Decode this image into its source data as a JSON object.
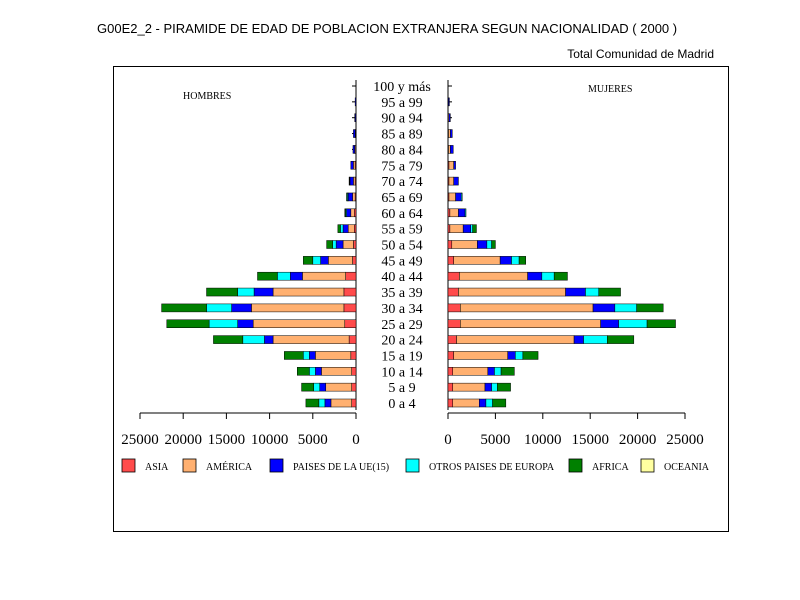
{
  "title": "G00E2_2 - PIRAMIDE DE EDAD DE POBLACION EXTRANJERA SEGUN NACIONALIDAD ( 2000 )",
  "subtitle": "Total Comunidad de Madrid",
  "chart_data": {
    "type": "bar",
    "orientation": "horizontal-stacked-pyramid",
    "left_label": "HOMBRES",
    "right_label": "MUJERES",
    "categories": [
      "0 a 4",
      "5 a 9",
      "10 a 14",
      "15 a 19",
      "20 a 24",
      "25 a 29",
      "30 a 34",
      "35 a 39",
      "40 a 44",
      "45 a 49",
      "50 a 54",
      "55 a 59",
      "60 a 64",
      "65 a 69",
      "70 a 74",
      "75 a 79",
      "80 a 84",
      "85 a 89",
      "90 a 94",
      "95 a 99",
      "100 y más"
    ],
    "axis_ticks": [
      0,
      5000,
      10000,
      15000,
      20000,
      25000
    ],
    "xlim": [
      0,
      25000
    ],
    "legend": [
      {
        "name": "ASIA",
        "color": "#ff4b4b"
      },
      {
        "name": "AMÉRICA",
        "color": "#ffb070"
      },
      {
        "name": "PAISES DE LA UE(15)",
        "color": "#0000ff"
      },
      {
        "name": "OTROS PAISES DE EUROPA",
        "color": "#00ffff"
      },
      {
        "name": "AFRICA",
        "color": "#008000"
      },
      {
        "name": "OCEANIA",
        "color": "#ffffa0"
      }
    ],
    "men": [
      [
        500,
        2400,
        700,
        700,
        1500,
        0
      ],
      [
        500,
        3000,
        700,
        700,
        1400,
        0
      ],
      [
        500,
        3500,
        700,
        700,
        1400,
        0
      ],
      [
        600,
        4100,
        700,
        700,
        2200,
        0
      ],
      [
        800,
        8800,
        1000,
        2500,
        3400,
        0
      ],
      [
        1300,
        10600,
        1800,
        3300,
        4900,
        0
      ],
      [
        1400,
        10700,
        2300,
        2900,
        5200,
        0
      ],
      [
        1400,
        8200,
        2200,
        1900,
        3600,
        0
      ],
      [
        1200,
        5000,
        1400,
        1500,
        2300,
        0
      ],
      [
        400,
        2800,
        900,
        900,
        1100,
        0
      ],
      [
        300,
        1200,
        800,
        400,
        700,
        0
      ],
      [
        200,
        700,
        600,
        300,
        300,
        0
      ],
      [
        200,
        400,
        500,
        100,
        100,
        0
      ],
      [
        100,
        300,
        500,
        100,
        100,
        0
      ],
      [
        100,
        200,
        400,
        50,
        50,
        0
      ],
      [
        100,
        200,
        300,
        0,
        0,
        0
      ],
      [
        50,
        100,
        200,
        0,
        0,
        0
      ],
      [
        50,
        50,
        200,
        0,
        0,
        0
      ],
      [
        0,
        50,
        100,
        0,
        0,
        0
      ],
      [
        0,
        0,
        100,
        0,
        0,
        0
      ],
      [
        0,
        0,
        0,
        0,
        0,
        0
      ]
    ],
    "women": [
      [
        500,
        2800,
        700,
        700,
        1400,
        0
      ],
      [
        500,
        3400,
        700,
        600,
        1400,
        0
      ],
      [
        500,
        3700,
        700,
        700,
        1400,
        0
      ],
      [
        600,
        5700,
        800,
        800,
        1600,
        0
      ],
      [
        900,
        12400,
        1000,
        2500,
        2800,
        0
      ],
      [
        1300,
        14800,
        1900,
        3000,
        3000,
        0
      ],
      [
        1300,
        14000,
        2300,
        2300,
        2800,
        0
      ],
      [
        1100,
        11300,
        2100,
        1400,
        2300,
        0
      ],
      [
        1200,
        7200,
        1500,
        1300,
        1400,
        0
      ],
      [
        600,
        4900,
        1200,
        800,
        700,
        0
      ],
      [
        400,
        2700,
        1000,
        500,
        400,
        0
      ],
      [
        200,
        1400,
        800,
        200,
        400,
        0
      ],
      [
        200,
        900,
        700,
        100,
        0,
        0
      ],
      [
        100,
        700,
        600,
        100,
        0,
        0
      ],
      [
        100,
        500,
        500,
        0,
        0,
        0
      ],
      [
        100,
        500,
        200,
        0,
        0,
        0
      ],
      [
        50,
        200,
        300,
        0,
        0,
        0
      ],
      [
        50,
        200,
        200,
        0,
        0,
        0
      ],
      [
        0,
        100,
        150,
        0,
        0,
        0
      ],
      [
        0,
        50,
        100,
        0,
        0,
        0
      ],
      [
        0,
        0,
        0,
        0,
        0,
        0
      ]
    ]
  }
}
